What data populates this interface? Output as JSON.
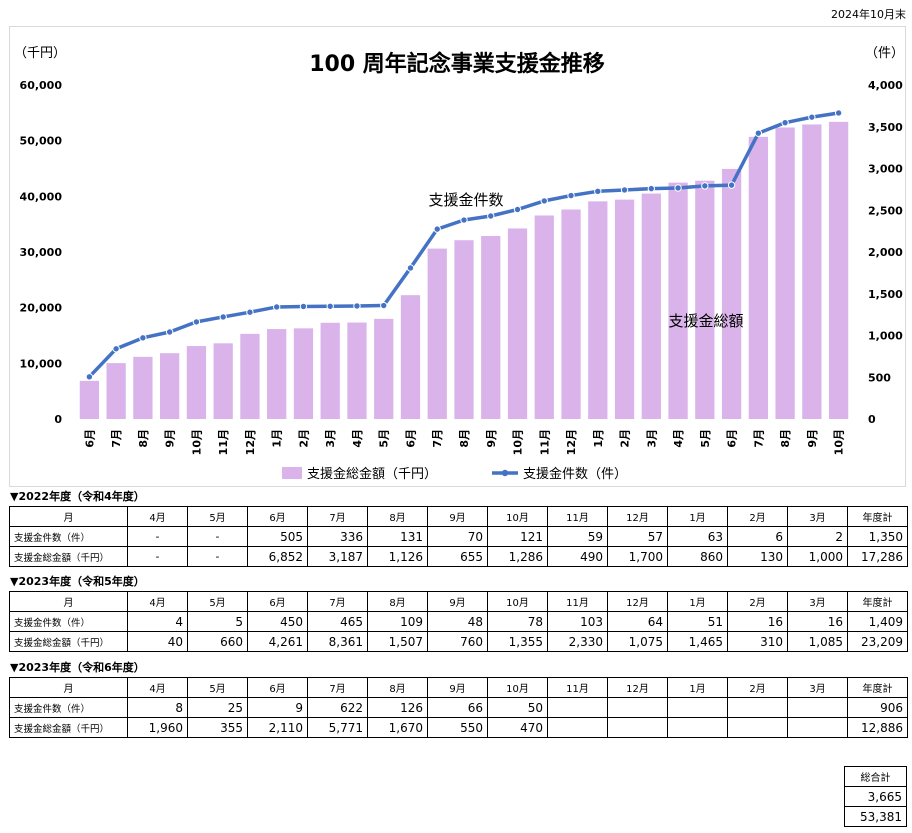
{
  "date_note": "2024年10月末",
  "chart_data": {
    "type": "bar+line",
    "title": "100 周年記念事業支援金推移",
    "left_unit": "（千円）",
    "right_unit": "（件）",
    "y_left": {
      "min": 0,
      "max": 60000,
      "ticks": [
        "0",
        "10,000",
        "20,000",
        "30,000",
        "40,000",
        "50,000",
        "60,000"
      ]
    },
    "y_right": {
      "min": 0,
      "max": 4000,
      "ticks": [
        "0",
        "500",
        "1,000",
        "1,500",
        "2,000",
        "2,500",
        "3,000",
        "3,500",
        "4,000"
      ]
    },
    "categories": [
      "6月",
      "7月",
      "8月",
      "9月",
      "10月",
      "11月",
      "12月",
      "1月",
      "2月",
      "3月",
      "4月",
      "5月",
      "6月",
      "7月",
      "8月",
      "9月",
      "10月",
      "11月",
      "12月",
      "1月",
      "2月",
      "3月",
      "4月",
      "5月",
      "6月",
      "7月",
      "8月",
      "9月",
      "10月"
    ],
    "series": [
      {
        "name": "支援金総金額（千円）",
        "type": "bar",
        "axis": "left",
        "color": "#d9b3ea",
        "values": [
          6852,
          10039,
          11165,
          11820,
          13106,
          13596,
          15296,
          16156,
          16286,
          17286,
          17326,
          17986,
          22247,
          30608,
          32115,
          32875,
          34230,
          36560,
          37635,
          39100,
          39410,
          40495,
          42455,
          42810,
          44920,
          50691,
          52361,
          52911,
          53381
        ]
      },
      {
        "name": "支援金件数（件）",
        "type": "line",
        "axis": "right",
        "color": "#4472c4",
        "values": [
          505,
          841,
          972,
          1042,
          1163,
          1222,
          1279,
          1342,
          1348,
          1350,
          1354,
          1359,
          1809,
          2274,
          2383,
          2431,
          2509,
          2612,
          2676,
          2727,
          2743,
          2759,
          2767,
          2792,
          2801,
          3423,
          3549,
          3615,
          3665
        ]
      }
    ],
    "annotations": {
      "line_label": "支援金件数",
      "bar_label": "支援金総額"
    },
    "legend_position": "bottom"
  },
  "tables": [
    {
      "title": "▼2022年度（令和4年度）",
      "header": [
        "月",
        "4月",
        "5月",
        "6月",
        "7月",
        "8月",
        "9月",
        "10月",
        "11月",
        "12月",
        "1月",
        "2月",
        "3月",
        "年度計"
      ],
      "rows": [
        {
          "label": "支援金件数（件）",
          "cells": [
            "-",
            "-",
            "505",
            "336",
            "131",
            "70",
            "121",
            "59",
            "57",
            "63",
            "6",
            "2",
            "1,350"
          ]
        },
        {
          "label": "支援金総金額（千円）",
          "cells": [
            "-",
            "-",
            "6,852",
            "3,187",
            "1,126",
            "655",
            "1,286",
            "490",
            "1,700",
            "860",
            "130",
            "1,000",
            "17,286"
          ]
        }
      ]
    },
    {
      "title": "▼2023年度（令和5年度）",
      "header": [
        "月",
        "4月",
        "5月",
        "6月",
        "7月",
        "8月",
        "9月",
        "10月",
        "11月",
        "12月",
        "1月",
        "2月",
        "3月",
        "年度計"
      ],
      "rows": [
        {
          "label": "支援金件数（件）",
          "cells": [
            "4",
            "5",
            "450",
            "465",
            "109",
            "48",
            "78",
            "103",
            "64",
            "51",
            "16",
            "16",
            "1,409"
          ]
        },
        {
          "label": "支援金総金額（千円）",
          "cells": [
            "40",
            "660",
            "4,261",
            "8,361",
            "1,507",
            "760",
            "1,355",
            "2,330",
            "1,075",
            "1,465",
            "310",
            "1,085",
            "23,209"
          ]
        }
      ]
    },
    {
      "title": "▼2023年度（令和6年度）",
      "header": [
        "月",
        "4月",
        "5月",
        "6月",
        "7月",
        "8月",
        "9月",
        "10月",
        "11月",
        "12月",
        "1月",
        "2月",
        "3月",
        "年度計"
      ],
      "rows": [
        {
          "label": "支援金件数（件）",
          "cells": [
            "8",
            "25",
            "9",
            "622",
            "126",
            "66",
            "50",
            "",
            "",
            "",
            "",
            "",
            "906"
          ]
        },
        {
          "label": "支援金総金額（千円）",
          "cells": [
            "1,960",
            "355",
            "2,110",
            "5,771",
            "1,670",
            "550",
            "470",
            "",
            "",
            "",
            "",
            "",
            "12,886"
          ]
        }
      ]
    }
  ],
  "grand_total": {
    "header": "総合計",
    "count": "3,665",
    "amount": "53,381"
  }
}
